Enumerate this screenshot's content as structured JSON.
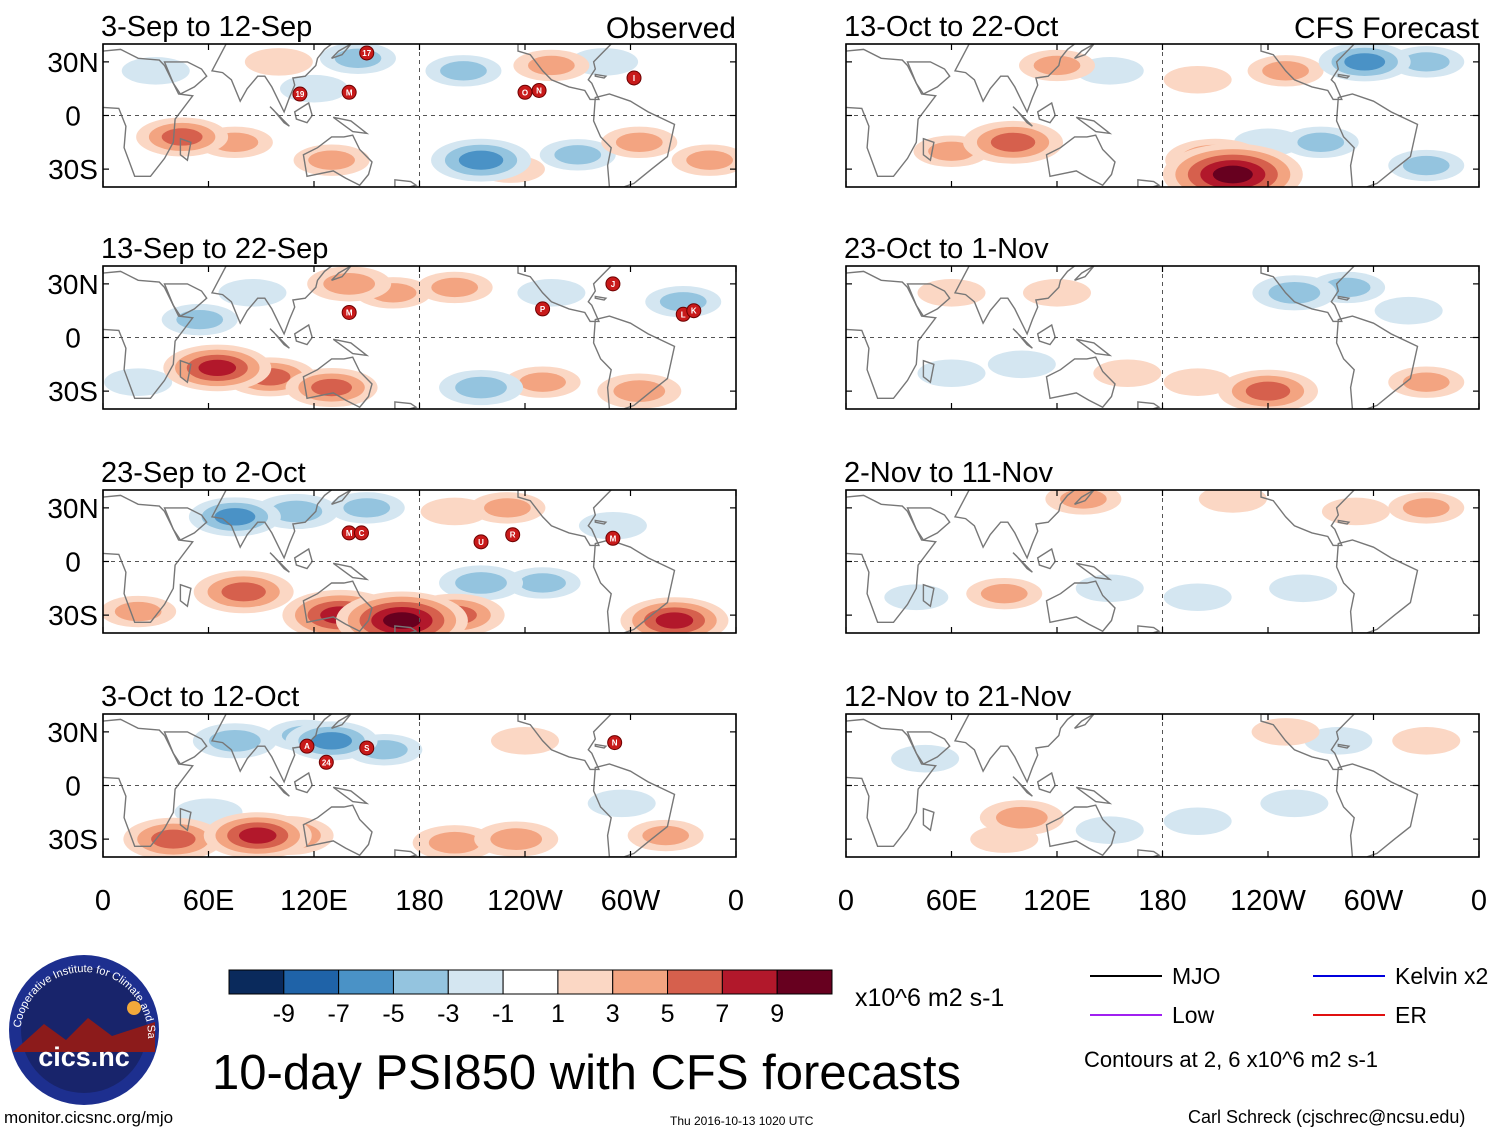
{
  "chart_data": {
    "type": "heatmap",
    "title": "10-day PSI850 with CFS forecasts",
    "variable": "PSI850",
    "units": "x10^6 m2 s-1",
    "contour_note": "Contours at 2, 6 x10^6 m2 s-1",
    "column_labels": {
      "observed": "Observed",
      "forecast": "CFS Forecast"
    },
    "x_ticks": [
      "0",
      "60E",
      "120E",
      "180",
      "120W",
      "60W",
      "0"
    ],
    "x_range_deg_east": [
      0,
      360
    ],
    "y_ticks": [
      "30N",
      "0",
      "30S"
    ],
    "y_range_deg": [
      -40,
      40
    ],
    "colorbar": {
      "tick_labels": [
        "-9",
        "-7",
        "-5",
        "-3",
        "-1",
        "1",
        "3",
        "5",
        "7",
        "9"
      ],
      "colors": [
        "#0a2a5c",
        "#1f63a8",
        "#4a92c6",
        "#94c4df",
        "#d4e6f1",
        "#ffffff",
        "#fbd7c4",
        "#f3a481",
        "#d6604d",
        "#b2182b",
        "#67001f"
      ]
    },
    "legend": [
      {
        "label": "MJO",
        "color": "#000000"
      },
      {
        "label": "Kelvin x2",
        "color": "#0000dd"
      },
      {
        "label": "Low",
        "color": "#a020f0"
      },
      {
        "label": "ER",
        "color": "#e01010"
      }
    ],
    "panels": [
      {
        "period": "3-Sep to 12-Sep",
        "kind": "observed",
        "anomalies": [
          {
            "lon": 45,
            "lat": -12,
            "v": 5
          },
          {
            "lon": 75,
            "lat": -15,
            "v": 3
          },
          {
            "lon": 130,
            "lat": -25,
            "v": 3
          },
          {
            "lon": 215,
            "lat": -25,
            "v": -6
          },
          {
            "lon": 232,
            "lat": -30,
            "v": 2
          },
          {
            "lon": 270,
            "lat": -22,
            "v": -3
          },
          {
            "lon": 145,
            "lat": 32,
            "v": -3
          },
          {
            "lon": 205,
            "lat": 25,
            "v": -3
          },
          {
            "lon": 30,
            "lat": 25,
            "v": -2
          },
          {
            "lon": 255,
            "lat": 28,
            "v": 3
          },
          {
            "lon": 285,
            "lat": 30,
            "v": -2
          },
          {
            "lon": 120,
            "lat": 15,
            "v": -2
          },
          {
            "lon": 345,
            "lat": -25,
            "v": 3
          },
          {
            "lon": 305,
            "lat": -15,
            "v": 3
          },
          {
            "lon": 100,
            "lat": 30,
            "v": 2
          }
        ],
        "storms": [
          {
            "label": "17",
            "lon": 150,
            "lat": 35
          },
          {
            "label": "19",
            "lon": 112,
            "lat": 12
          },
          {
            "label": "M",
            "lon": 140,
            "lat": 13
          },
          {
            "label": "O",
            "lon": 240,
            "lat": 13
          },
          {
            "label": "N",
            "lon": 248,
            "lat": 14
          },
          {
            "label": "I",
            "lon": 302,
            "lat": 21
          }
        ]
      },
      {
        "period": "13-Sep to 22-Sep",
        "kind": "observed",
        "anomalies": [
          {
            "lon": 65,
            "lat": -17,
            "v": 7
          },
          {
            "lon": 95,
            "lat": -22,
            "v": 5
          },
          {
            "lon": 130,
            "lat": -28,
            "v": 5
          },
          {
            "lon": 140,
            "lat": 30,
            "v": 4
          },
          {
            "lon": 165,
            "lat": 25,
            "v": 3
          },
          {
            "lon": 55,
            "lat": 10,
            "v": -3
          },
          {
            "lon": 215,
            "lat": -28,
            "v": -4
          },
          {
            "lon": 250,
            "lat": -25,
            "v": 3
          },
          {
            "lon": 255,
            "lat": 25,
            "v": -2
          },
          {
            "lon": 200,
            "lat": 28,
            "v": 3
          },
          {
            "lon": 305,
            "lat": -30,
            "v": 4
          },
          {
            "lon": 330,
            "lat": 20,
            "v": -3
          },
          {
            "lon": 85,
            "lat": 25,
            "v": -2
          },
          {
            "lon": 20,
            "lat": -25,
            "v": -2
          }
        ],
        "storms": [
          {
            "label": "M",
            "lon": 140,
            "lat": 14
          },
          {
            "label": "P",
            "lon": 250,
            "lat": 16
          },
          {
            "label": "J",
            "lon": 290,
            "lat": 30
          },
          {
            "label": "L",
            "lon": 330,
            "lat": 13
          },
          {
            "label": "K",
            "lon": 336,
            "lat": 15
          }
        ]
      },
      {
        "period": "23-Sep to 2-Oct",
        "kind": "observed",
        "anomalies": [
          {
            "lon": 80,
            "lat": -17,
            "v": 6
          },
          {
            "lon": 135,
            "lat": -30,
            "v": 8
          },
          {
            "lon": 170,
            "lat": -33,
            "v": 10
          },
          {
            "lon": 200,
            "lat": -30,
            "v": 6
          },
          {
            "lon": 325,
            "lat": -33,
            "v": 7
          },
          {
            "lon": 75,
            "lat": 25,
            "v": -5
          },
          {
            "lon": 110,
            "lat": 28,
            "v": -4
          },
          {
            "lon": 150,
            "lat": 30,
            "v": -3
          },
          {
            "lon": 215,
            "lat": -12,
            "v": -4
          },
          {
            "lon": 250,
            "lat": -12,
            "v": -3
          },
          {
            "lon": 200,
            "lat": 28,
            "v": 2
          },
          {
            "lon": 290,
            "lat": 20,
            "v": -2
          },
          {
            "lon": 20,
            "lat": -28,
            "v": 3
          },
          {
            "lon": 230,
            "lat": 30,
            "v": 3
          }
        ],
        "storms": [
          {
            "label": "M",
            "lon": 140,
            "lat": 16
          },
          {
            "label": "C",
            "lon": 147,
            "lat": 16
          },
          {
            "label": "U",
            "lon": 215,
            "lat": 11
          },
          {
            "label": "R",
            "lon": 233,
            "lat": 15
          },
          {
            "label": "M",
            "lon": 290,
            "lat": 13
          }
        ]
      },
      {
        "period": "3-Oct to 12-Oct",
        "kind": "observed",
        "anomalies": [
          {
            "lon": 40,
            "lat": -30,
            "v": 6
          },
          {
            "lon": 88,
            "lat": -28,
            "v": 7
          },
          {
            "lon": 105,
            "lat": -28,
            "v": 5
          },
          {
            "lon": 200,
            "lat": -32,
            "v": 4
          },
          {
            "lon": 235,
            "lat": -30,
            "v": 4
          },
          {
            "lon": 75,
            "lat": 25,
            "v": -4
          },
          {
            "lon": 115,
            "lat": 28,
            "v": -3
          },
          {
            "lon": 130,
            "lat": 25,
            "v": -5
          },
          {
            "lon": 160,
            "lat": 20,
            "v": -3
          },
          {
            "lon": 60,
            "lat": -15,
            "v": -2
          },
          {
            "lon": 295,
            "lat": -10,
            "v": -2
          },
          {
            "lon": 320,
            "lat": -28,
            "v": 3
          },
          {
            "lon": 240,
            "lat": 25,
            "v": 2
          }
        ],
        "storms": [
          {
            "label": "A",
            "lon": 116,
            "lat": 22
          },
          {
            "label": "24",
            "lon": 127,
            "lat": 13
          },
          {
            "label": "S",
            "lon": 150,
            "lat": 21
          },
          {
            "label": "N",
            "lon": 291,
            "lat": 24
          }
        ]
      },
      {
        "period": "13-Oct to 22-Oct",
        "kind": "forecast",
        "anomalies": [
          {
            "lon": 95,
            "lat": -15,
            "v": 6
          },
          {
            "lon": 220,
            "lat": -33,
            "v": 11
          },
          {
            "lon": 210,
            "lat": -25,
            "v": 6
          },
          {
            "lon": 60,
            "lat": -20,
            "v": 3
          },
          {
            "lon": 295,
            "lat": 30,
            "v": -5
          },
          {
            "lon": 330,
            "lat": 30,
            "v": -3
          },
          {
            "lon": 270,
            "lat": -15,
            "v": -3
          },
          {
            "lon": 330,
            "lat": -28,
            "v": -3
          },
          {
            "lon": 240,
            "lat": -15,
            "v": -2
          },
          {
            "lon": 120,
            "lat": 28,
            "v": 3
          },
          {
            "lon": 150,
            "lat": 25,
            "v": -2
          },
          {
            "lon": 200,
            "lat": 20,
            "v": 2
          },
          {
            "lon": 250,
            "lat": 25,
            "v": 3
          }
        ],
        "storms": []
      },
      {
        "period": "23-Oct to 1-Nov",
        "kind": "forecast",
        "anomalies": [
          {
            "lon": 240,
            "lat": -30,
            "v": 6
          },
          {
            "lon": 255,
            "lat": 25,
            "v": -4
          },
          {
            "lon": 285,
            "lat": 28,
            "v": -3
          },
          {
            "lon": 120,
            "lat": 25,
            "v": 2
          },
          {
            "lon": 60,
            "lat": -20,
            "v": -2
          },
          {
            "lon": 100,
            "lat": -15,
            "v": -2
          },
          {
            "lon": 160,
            "lat": -20,
            "v": 2
          },
          {
            "lon": 200,
            "lat": -25,
            "v": 2
          },
          {
            "lon": 330,
            "lat": -25,
            "v": 3
          },
          {
            "lon": 60,
            "lat": 25,
            "v": 2
          },
          {
            "lon": 320,
            "lat": 15,
            "v": -2
          }
        ],
        "storms": []
      },
      {
        "period": "2-Nov to 11-Nov",
        "kind": "forecast",
        "anomalies": [
          {
            "lon": 90,
            "lat": -18,
            "v": 3
          },
          {
            "lon": 135,
            "lat": 35,
            "v": 3
          },
          {
            "lon": 220,
            "lat": 35,
            "v": 2
          },
          {
            "lon": 290,
            "lat": 28,
            "v": 2
          },
          {
            "lon": 330,
            "lat": 30,
            "v": 3
          },
          {
            "lon": 200,
            "lat": -20,
            "v": -2
          },
          {
            "lon": 260,
            "lat": -15,
            "v": -2
          },
          {
            "lon": 150,
            "lat": -15,
            "v": -2
          },
          {
            "lon": 40,
            "lat": -20,
            "v": -1.5
          }
        ],
        "storms": []
      },
      {
        "period": "12-Nov to 21-Nov",
        "kind": "forecast",
        "anomalies": [
          {
            "lon": 100,
            "lat": -18,
            "v": 4
          },
          {
            "lon": 90,
            "lat": -30,
            "v": 2
          },
          {
            "lon": 330,
            "lat": 25,
            "v": 2
          },
          {
            "lon": 280,
            "lat": 25,
            "v": -2
          },
          {
            "lon": 200,
            "lat": -20,
            "v": -2
          },
          {
            "lon": 255,
            "lat": -10,
            "v": -2
          },
          {
            "lon": 45,
            "lat": 15,
            "v": -2
          },
          {
            "lon": 150,
            "lat": -25,
            "v": -2
          },
          {
            "lon": 250,
            "lat": 30,
            "v": 2
          }
        ],
        "storms": []
      }
    ]
  },
  "footer": {
    "url": "monitor.cicsnc.org/mjo",
    "timestamp": "Thu 2016-10-13 1020 UTC",
    "author": "Carl Schreck (cjschrec@ncsu.edu)"
  },
  "logo": {
    "ring_text": "Cooperative Institute for Climate and Satellites",
    "wordmark": "cics.nc",
    "colors": {
      "navy": "#18246b",
      "ring": "#1d2f8f",
      "text": "#ffffff",
      "mountain": "#8c1b1b",
      "sun": "#f2a93b"
    }
  }
}
